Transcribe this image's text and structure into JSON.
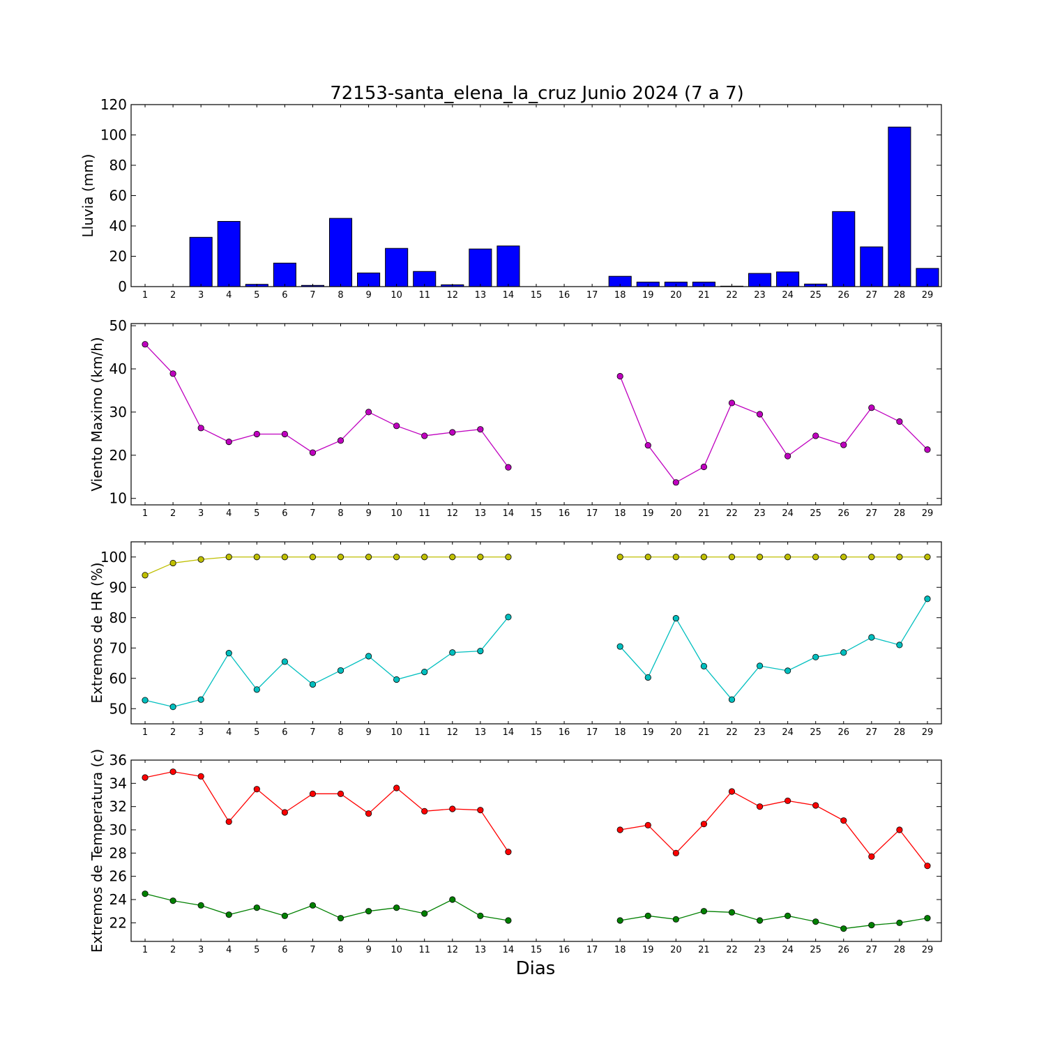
{
  "figure": {
    "title": "72153-santa_elena_la_cruz Junio 2024  (7 a 7)",
    "xlabel": "Dias"
  },
  "chart_data": [
    {
      "type": "bar",
      "ylabel": "Lluvia (mm)",
      "ylim": [
        0,
        120
      ],
      "yticks": [
        0,
        20,
        40,
        60,
        80,
        100,
        120
      ],
      "categories": [
        "1",
        "2",
        "3",
        "4",
        "5",
        "6",
        "7",
        "8",
        "9",
        "10",
        "11",
        "12",
        "13",
        "14",
        "15",
        "16",
        "17",
        "18",
        "19",
        "20",
        "21",
        "22",
        "23",
        "24",
        "25",
        "26",
        "27",
        "28",
        "29"
      ],
      "series": [
        {
          "color": "#0000ff",
          "values": [
            0,
            0,
            32.5,
            43,
            1.5,
            15.5,
            0.8,
            45,
            9,
            25.2,
            10,
            1.2,
            24.8,
            26.8,
            0,
            0,
            0,
            6.8,
            3,
            3,
            3,
            0.3,
            8.7,
            9.7,
            1.7,
            49.5,
            26.2,
            105.2,
            12
          ]
        }
      ]
    },
    {
      "type": "line",
      "ylabel": "Viento Maximo (km/h)",
      "ylim": [
        8.5,
        50.5
      ],
      "yticks": [
        10,
        20,
        30,
        40,
        50
      ],
      "categories": [
        "1",
        "2",
        "3",
        "4",
        "5",
        "6",
        "7",
        "8",
        "9",
        "10",
        "11",
        "12",
        "13",
        "14",
        "15",
        "16",
        "17",
        "18",
        "19",
        "20",
        "21",
        "22",
        "23",
        "24",
        "25",
        "26",
        "27",
        "28",
        "29"
      ],
      "series": [
        {
          "color": "#bf00bf",
          "values": [
            45.7,
            38.9,
            26.3,
            23.1,
            24.9,
            24.9,
            20.6,
            23.4,
            30,
            26.8,
            24.5,
            25.3,
            26,
            17.2,
            null,
            null,
            null,
            38.3,
            22.3,
            13.7,
            17.3,
            32.1,
            29.5,
            19.8,
            24.5,
            22.4,
            31,
            27.8,
            21.3
          ]
        }
      ]
    },
    {
      "type": "line",
      "ylabel": "Extremos de HR (%)",
      "ylim": [
        45,
        105
      ],
      "yticks": [
        50,
        60,
        70,
        80,
        90,
        100
      ],
      "categories": [
        "1",
        "2",
        "3",
        "4",
        "5",
        "6",
        "7",
        "8",
        "9",
        "10",
        "11",
        "12",
        "13",
        "14",
        "15",
        "16",
        "17",
        "18",
        "19",
        "20",
        "21",
        "22",
        "23",
        "24",
        "25",
        "26",
        "27",
        "28",
        "29"
      ],
      "series": [
        {
          "color": "#bfbf00",
          "values": [
            94,
            98,
            99.2,
            100,
            100,
            100,
            100,
            100,
            100,
            100,
            100,
            100,
            100,
            100,
            null,
            null,
            null,
            100,
            100,
            100,
            100,
            100,
            100,
            100,
            100,
            100,
            100,
            100,
            100
          ]
        },
        {
          "color": "#00bfbf",
          "values": [
            52.8,
            50.6,
            53,
            68.3,
            56.3,
            65.5,
            58,
            62.6,
            67.3,
            59.6,
            62.1,
            68.5,
            69,
            80.2,
            null,
            null,
            null,
            70.5,
            60.3,
            79.8,
            64,
            53,
            64.1,
            62.5,
            67,
            68.5,
            73.5,
            71,
            86.2
          ]
        }
      ]
    },
    {
      "type": "line",
      "ylabel": "Extremos de Temperatura (c)",
      "ylim": [
        20.4,
        36
      ],
      "yticks": [
        22,
        24,
        26,
        28,
        30,
        32,
        34,
        36
      ],
      "categories": [
        "1",
        "2",
        "3",
        "4",
        "5",
        "6",
        "7",
        "8",
        "9",
        "10",
        "11",
        "12",
        "13",
        "14",
        "15",
        "16",
        "17",
        "18",
        "19",
        "20",
        "21",
        "22",
        "23",
        "24",
        "25",
        "26",
        "27",
        "28",
        "29"
      ],
      "series": [
        {
          "color": "#ff0000",
          "values": [
            34.5,
            35,
            34.6,
            30.7,
            33.5,
            31.5,
            33.1,
            33.1,
            31.4,
            33.6,
            31.6,
            31.8,
            31.7,
            28.1,
            null,
            null,
            null,
            30,
            30.4,
            28,
            30.5,
            33.3,
            32,
            32.5,
            32.1,
            30.8,
            27.7,
            30,
            26.9
          ]
        },
        {
          "color": "#008000",
          "values": [
            24.5,
            23.9,
            23.5,
            22.7,
            23.3,
            22.6,
            23.5,
            22.4,
            23,
            23.3,
            22.8,
            24,
            22.6,
            22.2,
            null,
            null,
            null,
            22.2,
            22.6,
            22.3,
            23,
            22.9,
            22.2,
            22.6,
            22.1,
            21.5,
            21.8,
            22,
            22.4
          ]
        }
      ]
    }
  ]
}
